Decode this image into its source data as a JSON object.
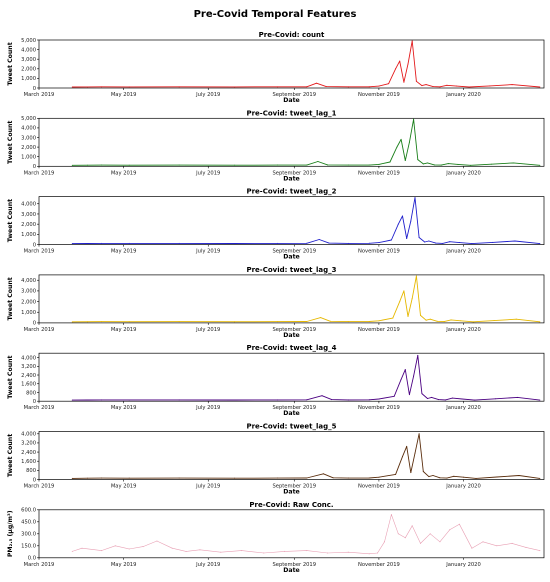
{
  "figure": {
    "title": "Pre-Covid Temporal Features"
  },
  "chart_data": [
    {
      "type": "line",
      "title": "Pre-Covid: count",
      "xlabel": "Date",
      "ylabel": "Tweet Count",
      "color": "#e31a1c",
      "ylim": [
        0,
        5000
      ],
      "yticks": [
        "0",
        "1,000",
        "2,000",
        "3,000",
        "4,000",
        "5,000"
      ],
      "ytick_values": [
        0,
        1000,
        2000,
        3000,
        4000,
        5000
      ],
      "xticks": [
        "March 2019",
        "May 2019",
        "July 2019",
        "September 2019",
        "November 2019",
        "January 2020"
      ],
      "xtick_values": [
        "2019-03-01",
        "2019-05-01",
        "2019-07-01",
        "2019-09-01",
        "2019-11-01",
        "2020-01-01"
      ],
      "xlim": [
        "2019-03-01",
        "2020-02-28"
      ],
      "x": [
        "2019-03-25",
        "2019-04-05",
        "2019-04-15",
        "2019-05-05",
        "2019-06-10",
        "2019-07-20",
        "2019-08-20",
        "2019-09-10",
        "2019-09-17",
        "2019-09-24",
        "2019-10-10",
        "2019-10-25",
        "2019-11-01",
        "2019-11-08",
        "2019-11-13",
        "2019-11-16",
        "2019-11-19",
        "2019-11-22",
        "2019-11-25",
        "2019-11-28",
        "2019-12-02",
        "2019-12-05",
        "2019-12-10",
        "2019-12-15",
        "2019-12-20",
        "2019-12-27",
        "2020-01-05",
        "2020-01-20",
        "2020-02-05",
        "2020-02-25"
      ],
      "y": [
        100,
        110,
        120,
        115,
        120,
        110,
        120,
        130,
        500,
        150,
        120,
        130,
        200,
        450,
        2000,
        2800,
        600,
        2500,
        4900,
        700,
        250,
        350,
        150,
        120,
        280,
        200,
        100,
        220,
        350,
        100
      ]
    },
    {
      "type": "line",
      "title": "Pre-Covid: tweet_lag_1",
      "xlabel": "Date",
      "ylabel": "Tweet Count",
      "color": "#1a7f1a",
      "ylim": [
        0,
        5000
      ],
      "yticks": [
        "0",
        "1,000",
        "2,000",
        "3,000",
        "4,000",
        "5,000"
      ],
      "ytick_values": [
        0,
        1000,
        2000,
        3000,
        4000,
        5000
      ],
      "xticks": [
        "March 2019",
        "May 2019",
        "July 2019",
        "September 2019",
        "November 2019",
        "January 2020"
      ],
      "xtick_values": [
        "2019-03-01",
        "2019-05-01",
        "2019-07-01",
        "2019-09-01",
        "2019-11-01",
        "2020-01-01"
      ],
      "xlim": [
        "2019-03-01",
        "2020-02-28"
      ],
      "x": [
        "2019-03-25",
        "2019-04-05",
        "2019-04-15",
        "2019-05-05",
        "2019-06-10",
        "2019-07-20",
        "2019-08-20",
        "2019-09-10",
        "2019-09-18",
        "2019-09-25",
        "2019-10-10",
        "2019-10-25",
        "2019-11-01",
        "2019-11-09",
        "2019-11-14",
        "2019-11-17",
        "2019-11-20",
        "2019-11-23",
        "2019-11-26",
        "2019-11-29",
        "2019-12-03",
        "2019-12-06",
        "2019-12-11",
        "2019-12-16",
        "2019-12-21",
        "2019-12-28",
        "2020-01-06",
        "2020-01-21",
        "2020-02-06",
        "2020-02-25"
      ],
      "y": [
        100,
        110,
        120,
        115,
        120,
        110,
        120,
        130,
        500,
        150,
        120,
        130,
        200,
        450,
        2000,
        2800,
        600,
        2500,
        4900,
        700,
        250,
        350,
        150,
        120,
        280,
        200,
        100,
        220,
        350,
        100
      ]
    },
    {
      "type": "line",
      "title": "Pre-Covid: tweet_lag_2",
      "xlabel": "Date",
      "ylabel": "Tweet Count",
      "color": "#1f1fcc",
      "ylim": [
        0,
        4700
      ],
      "yticks": [
        "0",
        "1,000",
        "2,000",
        "3,000",
        "4,000"
      ],
      "ytick_values": [
        0,
        1000,
        2000,
        3000,
        4000
      ],
      "xticks": [
        "March 2019",
        "May 2019",
        "July 2019",
        "September 2019",
        "November 2019",
        "January 2020"
      ],
      "xtick_values": [
        "2019-03-01",
        "2019-05-01",
        "2019-07-01",
        "2019-09-01",
        "2019-11-01",
        "2020-01-01"
      ],
      "xlim": [
        "2019-03-01",
        "2020-02-28"
      ],
      "x": [
        "2019-03-25",
        "2019-04-05",
        "2019-04-15",
        "2019-05-05",
        "2019-06-10",
        "2019-07-20",
        "2019-08-20",
        "2019-09-10",
        "2019-09-19",
        "2019-09-26",
        "2019-10-10",
        "2019-10-25",
        "2019-11-01",
        "2019-11-10",
        "2019-11-15",
        "2019-11-18",
        "2019-11-21",
        "2019-11-24",
        "2019-11-27",
        "2019-11-30",
        "2019-12-04",
        "2019-12-07",
        "2019-12-12",
        "2019-12-17",
        "2019-12-22",
        "2019-12-29",
        "2020-01-07",
        "2020-01-22",
        "2020-02-07",
        "2020-02-25"
      ],
      "y": [
        100,
        110,
        120,
        115,
        120,
        110,
        120,
        130,
        500,
        150,
        120,
        130,
        200,
        450,
        2000,
        2800,
        600,
        2300,
        4600,
        700,
        250,
        350,
        150,
        120,
        280,
        200,
        100,
        220,
        350,
        100
      ]
    },
    {
      "type": "line",
      "title": "Pre-Covid: tweet_lag_3",
      "xlabel": "Date",
      "ylabel": "Tweet Count",
      "color": "#e6b800",
      "ylim": [
        0,
        4500
      ],
      "yticks": [
        "0",
        "1,000",
        "2,000",
        "3,000",
        "4,000"
      ],
      "ytick_values": [
        0,
        1000,
        2000,
        3000,
        4000
      ],
      "xticks": [
        "March 2019",
        "May 2019",
        "July 2019",
        "September 2019",
        "November 2019",
        "January 2020"
      ],
      "xtick_values": [
        "2019-03-01",
        "2019-05-01",
        "2019-07-01",
        "2019-09-01",
        "2019-11-01",
        "2020-01-01"
      ],
      "xlim": [
        "2019-03-01",
        "2020-02-28"
      ],
      "x": [
        "2019-03-25",
        "2019-04-05",
        "2019-04-15",
        "2019-05-05",
        "2019-06-10",
        "2019-07-20",
        "2019-08-20",
        "2019-09-10",
        "2019-09-20",
        "2019-09-27",
        "2019-10-10",
        "2019-10-25",
        "2019-11-01",
        "2019-11-11",
        "2019-11-16",
        "2019-11-19",
        "2019-11-22",
        "2019-11-25",
        "2019-11-28",
        "2019-12-01",
        "2019-12-05",
        "2019-12-08",
        "2019-12-13",
        "2019-12-18",
        "2019-12-23",
        "2019-12-30",
        "2020-01-08",
        "2020-01-23",
        "2020-02-08",
        "2020-02-25"
      ],
      "y": [
        100,
        110,
        120,
        115,
        120,
        110,
        120,
        130,
        500,
        150,
        120,
        130,
        200,
        450,
        2000,
        3000,
        600,
        2300,
        4400,
        700,
        250,
        350,
        150,
        120,
        280,
        200,
        100,
        220,
        350,
        100
      ]
    },
    {
      "type": "line",
      "title": "Pre-Covid: tweet_lag_4",
      "xlabel": "Date",
      "ylabel": "Tweet Count",
      "color": "#4b0082",
      "ylim": [
        0,
        4400
      ],
      "yticks": [
        "0",
        "800",
        "1,600",
        "2,400",
        "3,200",
        "4,000"
      ],
      "ytick_values": [
        0,
        800,
        1600,
        2400,
        3200,
        4000
      ],
      "xticks": [
        "March 2019",
        "May 2019",
        "July 2019",
        "September 2019",
        "November 2019",
        "January 2020"
      ],
      "xtick_values": [
        "2019-03-01",
        "2019-05-01",
        "2019-07-01",
        "2019-09-01",
        "2019-11-01",
        "2020-01-01"
      ],
      "xlim": [
        "2019-03-01",
        "2020-02-28"
      ],
      "x": [
        "2019-03-25",
        "2019-04-05",
        "2019-04-15",
        "2019-05-05",
        "2019-06-10",
        "2019-07-20",
        "2019-08-20",
        "2019-09-10",
        "2019-09-21",
        "2019-09-28",
        "2019-10-10",
        "2019-10-25",
        "2019-11-01",
        "2019-11-12",
        "2019-11-17",
        "2019-11-20",
        "2019-11-23",
        "2019-11-26",
        "2019-11-29",
        "2019-12-02",
        "2019-12-06",
        "2019-12-09",
        "2019-12-14",
        "2019-12-19",
        "2019-12-24",
        "2019-12-31",
        "2020-01-09",
        "2020-01-24",
        "2020-02-09",
        "2020-02-25"
      ],
      "y": [
        100,
        110,
        120,
        115,
        120,
        110,
        120,
        130,
        500,
        150,
        120,
        130,
        200,
        450,
        2000,
        2900,
        600,
        2300,
        4200,
        700,
        250,
        350,
        150,
        120,
        280,
        200,
        100,
        220,
        350,
        100
      ]
    },
    {
      "type": "line",
      "title": "Pre-Covid: tweet_lag_5",
      "xlabel": "Date",
      "ylabel": "Tweet Count",
      "color": "#5a2d0c",
      "ylim": [
        0,
        4200
      ],
      "yticks": [
        "0",
        "800",
        "1,600",
        "2,400",
        "3,200",
        "4,000"
      ],
      "ytick_values": [
        0,
        800,
        1600,
        2400,
        3200,
        4000
      ],
      "xticks": [
        "March 2019",
        "May 2019",
        "July 2019",
        "September 2019",
        "November 2019",
        "January 2020"
      ],
      "xtick_values": [
        "2019-03-01",
        "2019-05-01",
        "2019-07-01",
        "2019-09-01",
        "2019-11-01",
        "2020-01-01"
      ],
      "xlim": [
        "2019-03-01",
        "2020-02-28"
      ],
      "x": [
        "2019-03-25",
        "2019-04-05",
        "2019-04-15",
        "2019-05-05",
        "2019-06-10",
        "2019-07-20",
        "2019-08-20",
        "2019-09-10",
        "2019-09-22",
        "2019-09-29",
        "2019-10-10",
        "2019-10-25",
        "2019-11-01",
        "2019-11-13",
        "2019-11-18",
        "2019-11-21",
        "2019-11-24",
        "2019-11-27",
        "2019-11-30",
        "2019-12-03",
        "2019-12-07",
        "2019-12-10",
        "2019-12-15",
        "2019-12-20",
        "2019-12-25",
        "2020-01-01",
        "2020-01-10",
        "2020-01-25",
        "2020-02-10",
        "2020-02-25"
      ],
      "y": [
        100,
        110,
        120,
        115,
        120,
        110,
        120,
        130,
        500,
        150,
        120,
        130,
        200,
        450,
        2000,
        2900,
        600,
        2300,
        4000,
        700,
        250,
        350,
        150,
        120,
        280,
        200,
        100,
        220,
        350,
        100
      ]
    },
    {
      "type": "line",
      "title": "Pre-Covid: Raw Conc.",
      "xlabel": "Date",
      "ylabel": "PM₂.₅ (µg/m³)",
      "color": "#e8a0b4",
      "ylim": [
        0,
        600
      ],
      "yticks": [
        "0.0",
        "150.0",
        "300.0",
        "450.0",
        "600.0"
      ],
      "ytick_values": [
        0,
        150,
        300,
        450,
        600
      ],
      "xticks": [
        "March 2019",
        "May 2019",
        "July 2019",
        "September 2019",
        "November 2019",
        "January 2020"
      ],
      "xtick_values": [
        "2019-03-01",
        "2019-05-01",
        "2019-07-01",
        "2019-09-01",
        "2019-11-01",
        "2020-01-01"
      ],
      "xlim": [
        "2019-03-01",
        "2020-02-28"
      ],
      "x": [
        "2019-03-25",
        "2019-04-01",
        "2019-04-15",
        "2019-04-25",
        "2019-05-05",
        "2019-05-15",
        "2019-05-25",
        "2019-06-05",
        "2019-06-15",
        "2019-06-25",
        "2019-07-10",
        "2019-07-25",
        "2019-08-10",
        "2019-08-25",
        "2019-09-10",
        "2019-09-25",
        "2019-10-10",
        "2019-10-25",
        "2019-10-31",
        "2019-11-05",
        "2019-11-10",
        "2019-11-15",
        "2019-11-20",
        "2019-11-25",
        "2019-12-01",
        "2019-12-08",
        "2019-12-15",
        "2019-12-22",
        "2019-12-29",
        "2020-01-07",
        "2020-01-15",
        "2020-01-25",
        "2020-02-05",
        "2020-02-15",
        "2020-02-25"
      ],
      "y": [
        80,
        120,
        90,
        150,
        110,
        140,
        210,
        120,
        80,
        100,
        70,
        90,
        60,
        80,
        90,
        60,
        70,
        50,
        60,
        200,
        540,
        300,
        250,
        400,
        180,
        300,
        200,
        350,
        420,
        120,
        200,
        150,
        180,
        130,
        90
      ]
    }
  ]
}
